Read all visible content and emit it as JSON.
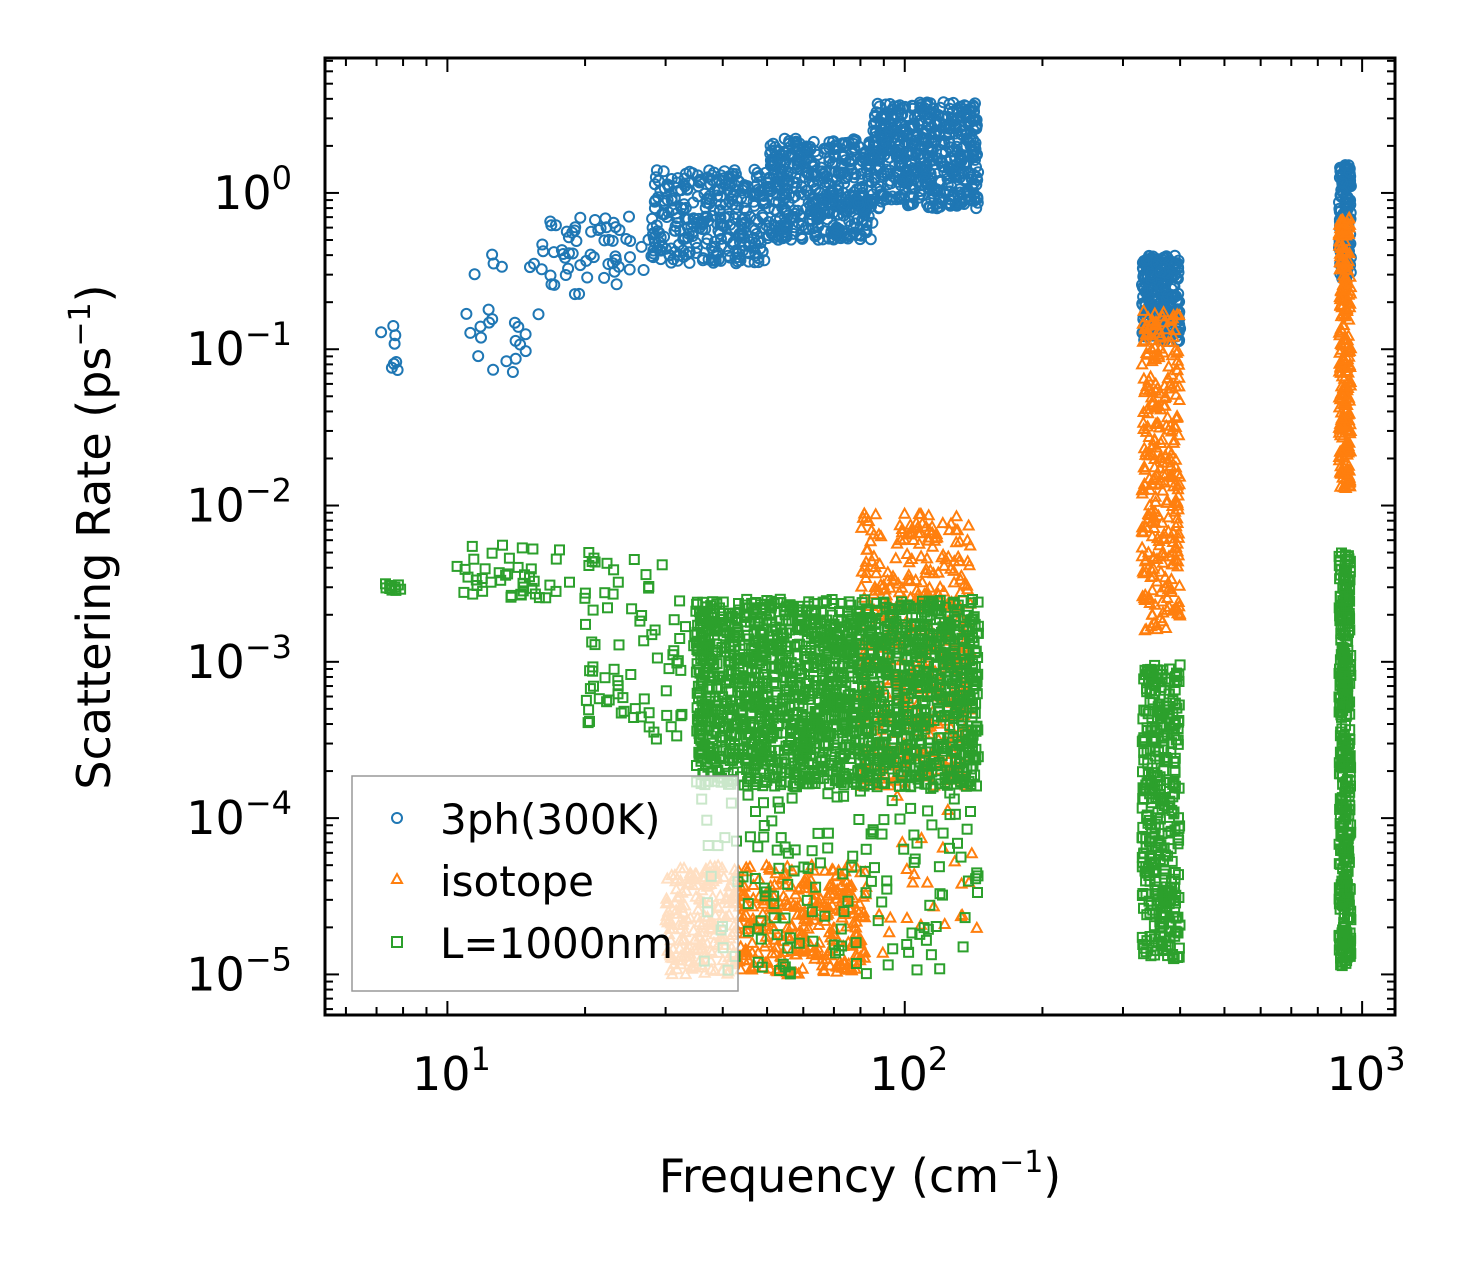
{
  "chart_data": {
    "type": "scatter",
    "title": "",
    "xlabel": "Frequency (cm⁻¹)",
    "xlabel_parts": {
      "pre": "Frequency (cm",
      "sup": "−1",
      "post": ")"
    },
    "ylabel": "Scattering Rate (ps⁻¹)",
    "ylabel_parts": {
      "pre": "Scattering Rate (ps",
      "sup": "−1",
      "post": ")"
    },
    "xscale": "log",
    "yscale": "log",
    "xlim": [
      5.4,
      1180
    ],
    "ylim": [
      5.5e-06,
      7.3
    ],
    "x_ticks": [
      {
        "value": 10,
        "base": "10",
        "exp": "1"
      },
      {
        "value": 100,
        "base": "10",
        "exp": "2"
      },
      {
        "value": 1000,
        "base": "10",
        "exp": "3"
      }
    ],
    "y_ticks": [
      {
        "value": 1,
        "base": "10",
        "exp": "0"
      },
      {
        "value": 0.1,
        "base": "10",
        "exp": "−1"
      },
      {
        "value": 0.01,
        "base": "10",
        "exp": "−2"
      },
      {
        "value": 0.001,
        "base": "10",
        "exp": "−3"
      },
      {
        "value": 0.0001,
        "base": "10",
        "exp": "−4"
      },
      {
        "value": 1e-05,
        "base": "10",
        "exp": "−5"
      }
    ],
    "legend_position": "lower-left",
    "series": [
      {
        "name": "3ph(300K)",
        "marker": "circle",
        "color": "#1f77b4",
        "clusters": [
          {
            "x": [
              7,
              8
            ],
            "ylog": [
              -1.2,
              -0.85
            ],
            "n": 8
          },
          {
            "x": [
              10.5,
              16
            ],
            "ylog": [
              -1.15,
              -0.35
            ],
            "n": 25
          },
          {
            "x": [
              16,
              28
            ],
            "ylog": [
              -0.65,
              -0.15
            ],
            "n": 60
          },
          {
            "x": [
              28,
              50
            ],
            "ylog": [
              -0.45,
              0.15
            ],
            "n": 300
          },
          {
            "x": [
              50,
              85
            ],
            "ylog": [
              -0.3,
              0.35
            ],
            "n": 450
          },
          {
            "x": [
              85,
              145
            ],
            "ylog": [
              -0.1,
              0.58
            ],
            "n": 500
          },
          {
            "x": [
              330,
              400
            ],
            "ylog": [
              -0.95,
              -0.4
            ],
            "n": 250
          },
          {
            "x": [
              890,
              945
            ],
            "ylog": [
              -0.55,
              0.18
            ],
            "n": 150
          }
        ]
      },
      {
        "name": "isotope",
        "marker": "triangle",
        "color": "#ff7f0e",
        "clusters": [
          {
            "x": [
              30,
              82
            ],
            "ylog": [
              -5.0,
              -4.3
            ],
            "n": 500
          },
          {
            "x": [
              80,
              140
            ],
            "ylog": [
              -3.8,
              -2.05
            ],
            "n": 400
          },
          {
            "x": [
              80,
              145
            ],
            "ylog": [
              -4.9,
              -3.2
            ],
            "n": 40
          },
          {
            "x": [
              330,
              400
            ],
            "ylog": [
              -2.8,
              -0.75
            ],
            "n": 300
          },
          {
            "x": [
              890,
              945
            ],
            "ylog": [
              -1.9,
              -0.15
            ],
            "n": 250
          }
        ]
      },
      {
        "name": "L=1000nm",
        "marker": "square",
        "color": "#2ca02c",
        "clusters": [
          {
            "x": [
              7,
              8
            ],
            "ylog": [
              -2.55,
              -2.5
            ],
            "n": 10
          },
          {
            "x": [
              10.5,
              30
            ],
            "ylog": [
              -2.6,
              -2.25
            ],
            "n": 60
          },
          {
            "x": [
              20,
              40
            ],
            "ylog": [
              -3.5,
              -2.6
            ],
            "n": 80
          },
          {
            "x": [
              35,
              145
            ],
            "ylog": [
              -3.8,
              -2.6
            ],
            "n": 1800
          },
          {
            "x": [
              35,
              145
            ],
            "ylog": [
              -5.0,
              -3.8
            ],
            "n": 150
          },
          {
            "x": [
              330,
              400
            ],
            "ylog": [
              -4.9,
              -3.0
            ],
            "n": 350
          },
          {
            "x": [
              890,
              945
            ],
            "ylog": [
              -4.95,
              -2.3
            ],
            "n": 400
          }
        ]
      }
    ]
  }
}
